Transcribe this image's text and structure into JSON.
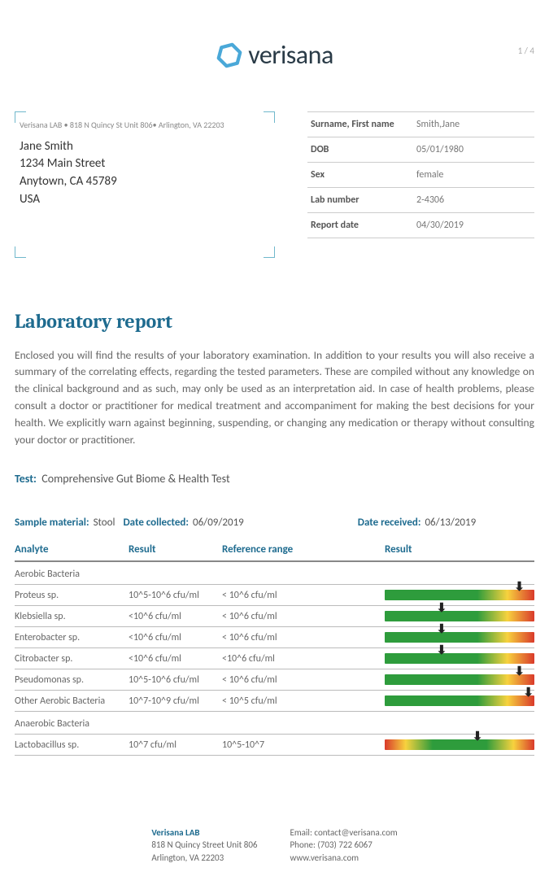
{
  "page_number": "1 / 4",
  "logo_text": "verisana",
  "logo_color": "#2a3b47",
  "logo_hex_color": "#4aa8d8",
  "address": {
    "return": "Verisana LAB • 818 N Quincy St Unit 806• Arlington, VA 22203",
    "name": "Jane Smith",
    "street": "1234 Main Street",
    "city": "Anytown, CA 45789",
    "country": "USA"
  },
  "patient": [
    {
      "label": "Surname, First name",
      "value": "Smith,Jane"
    },
    {
      "label": "DOB",
      "value": "05/01/1980"
    },
    {
      "label": "Sex",
      "value": "female"
    },
    {
      "label": "Lab number",
      "value": "2-4306"
    },
    {
      "label": "Report date",
      "value": "04/30/2019"
    }
  ],
  "title": "Laboratory report",
  "intro": "Enclosed you will find the results of your laboratory examination. In addition to your results you will also receive a summary of the correlating effects, regarding the tested parameters. These are compiled without any knowledge on the clinical background and as such, may only be used as an interpretation aid. In case of health problems, please consult a doctor or practitioner for medical treatment and accompaniment for making the best decisions for your health. We explicitly warn against beginning, suspending, or changing any medication or therapy without consulting your doctor or practitioner.",
  "test": {
    "label": "Test:",
    "name": "Comprehensive Gut Biome & Health Test"
  },
  "sample": {
    "material_label": "Sample material:",
    "material": "Stool",
    "collected_label": "Date collected:",
    "collected": "06/09/2019",
    "received_label": "Date received:",
    "received": "06/13/2019"
  },
  "columns": {
    "analyte": "Analyte",
    "result": "Result",
    "reference": "Reference range",
    "chart": "Result"
  },
  "gradient_colors": {
    "green": "#2e9c3c",
    "yellow": "#f7d23e",
    "red": "#d93a2b"
  },
  "rows": [
    {
      "type": "section",
      "label": "Aerobic Bacteria"
    },
    {
      "type": "data",
      "analyte": "Proteus sp.",
      "result": "10^5-10^6 cfu/ml",
      "ref": "< 10^6 cfu/ml",
      "gradient": "rising",
      "marker": 90
    },
    {
      "type": "data",
      "analyte": "Klebsiella sp.",
      "result": "<10^6 cfu/ml",
      "ref": "< 10^6 cfu/ml",
      "gradient": "rising",
      "marker": 38
    },
    {
      "type": "data",
      "analyte": "Enterobacter sp.",
      "result": "<10^6 cfu/ml",
      "ref": "< 10^6 cfu/ml",
      "gradient": "rising",
      "marker": 38
    },
    {
      "type": "data",
      "analyte": "Citrobacter sp.",
      "result": "<10^6 cfu/ml",
      "ref": "<10^6 cfu/ml",
      "gradient": "rising",
      "marker": 38
    },
    {
      "type": "data",
      "analyte": "Pseudomonas sp.",
      "result": "10^5-10^6 cfu/ml",
      "ref": "< 10^6 cfu/ml",
      "gradient": "rising",
      "marker": 90
    },
    {
      "type": "data",
      "analyte": "Other Aerobic Bacteria",
      "result": "10^7-10^9 cfu/ml",
      "ref": "< 10^5 cfu/ml",
      "gradient": "rising",
      "marker": 96
    },
    {
      "type": "section",
      "label": "Anaerobic Bacteria"
    },
    {
      "type": "data",
      "analyte": "Lactobacillus sp.",
      "result": "10^7 cfu/ml",
      "ref": "10^5-10^7",
      "gradient": "peak",
      "marker": 62
    }
  ],
  "footer": {
    "name": "Verisana LAB",
    "addr1": "818 N Quincy Street Unit 806",
    "addr2": "Arlington, VA 22203",
    "email": "Email: contact@verisana.com",
    "phone": "Phone: (703) 722 6067",
    "web": "www.verisana.com"
  }
}
